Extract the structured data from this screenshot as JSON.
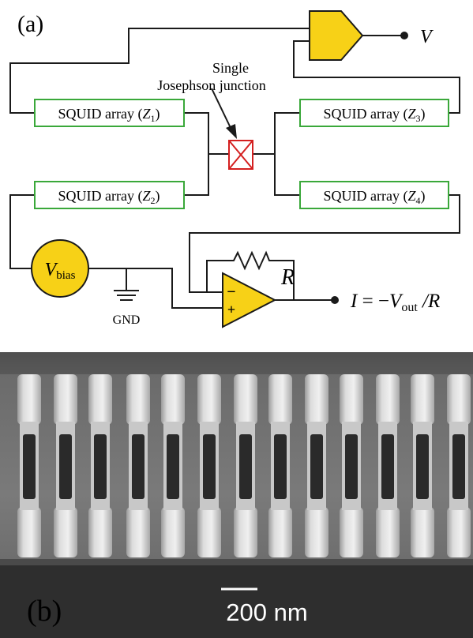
{
  "panel_a": {
    "label": "(a)",
    "annotation": {
      "line1": "Single",
      "line2": "Josephson junction"
    },
    "arrays": [
      {
        "prefix": "SQUID array (",
        "var": "Z",
        "sub": "1",
        "suffix": ")"
      },
      {
        "prefix": "SQUID array (",
        "var": "Z",
        "sub": "2",
        "suffix": ")"
      },
      {
        "prefix": "SQUID array (",
        "var": "Z",
        "sub": "3",
        "suffix": ")"
      },
      {
        "prefix": "SQUID array (",
        "var": "Z",
        "sub": "4",
        "suffix": ")"
      }
    ],
    "voltage_output": "V",
    "bias": {
      "main": "V",
      "sub": "bias"
    },
    "ground_label": "GND",
    "resistor_label": "R",
    "opamp_minus": "−",
    "opamp_plus": "+",
    "current_output": {
      "lhs": "I",
      "eq": " = −",
      "v": "V",
      "sub": "out",
      "tail": " /R"
    },
    "colors": {
      "wire": "#1a1a1a",
      "squid_box": "#3aa83a",
      "junction": "#d42020",
      "amplifier": "#f7d117",
      "bias_source": "#f7d117"
    }
  },
  "panel_b": {
    "label": "(b)",
    "scale_bar": "200 nm"
  }
}
